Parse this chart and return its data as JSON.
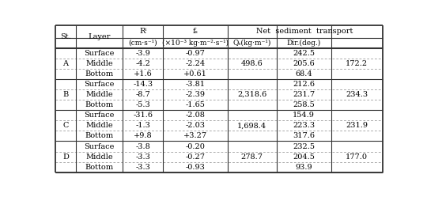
{
  "stations": [
    "A",
    "B",
    "C",
    "D"
  ],
  "layers": [
    "Surface",
    "Middle",
    "Bottom"
  ],
  "rf": [
    [
      "-3.9",
      "-4.2",
      "+1.6"
    ],
    [
      "-14.3",
      "-8.7",
      "-5.3"
    ],
    [
      "-31.6",
      "-1.3",
      "+9.8"
    ],
    [
      "-3.8",
      "-3.3",
      "-3.3"
    ]
  ],
  "fs": [
    [
      "-0.97",
      "-2.24",
      "+0.61"
    ],
    [
      "-3.81",
      "-2.39",
      "-1.65"
    ],
    [
      "-2.08",
      "-2.03",
      "+3.27"
    ],
    [
      "-0.20",
      "-0.27",
      "-0.93"
    ]
  ],
  "qs": [
    "498.6",
    "2,318.6",
    "1,698.4",
    "278.7"
  ],
  "dir_layer": [
    [
      "242.5",
      "205.6",
      "68.4"
    ],
    [
      "212.6",
      "231.7",
      "258.5"
    ],
    [
      "154.9",
      "223.3",
      "317.6"
    ],
    [
      "232.5",
      "204.5",
      "93.9"
    ]
  ],
  "dir_total": [
    "172.2",
    "234.3",
    "231.9",
    "177.0"
  ],
  "bg_color": "#ffffff",
  "text_color": "#000000",
  "font_size": 7.0,
  "font_size_sub": 6.5
}
